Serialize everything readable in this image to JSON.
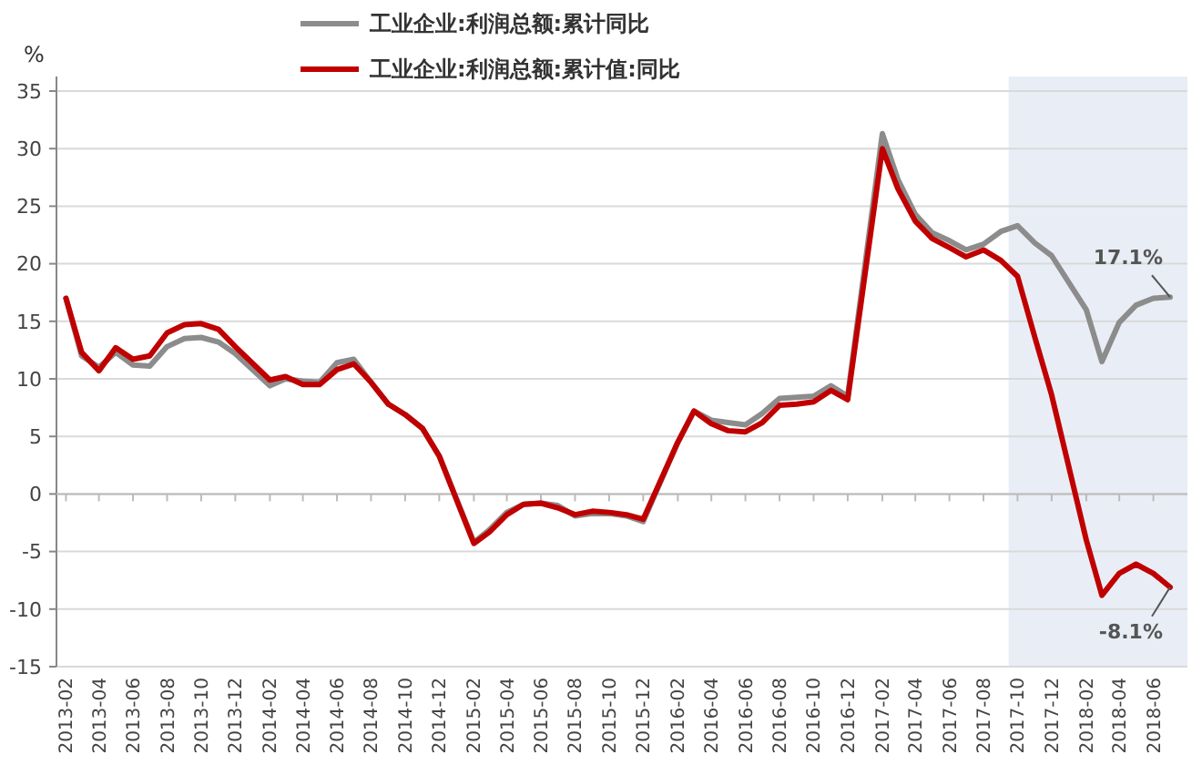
{
  "chart_data": {
    "type": "line",
    "ylabel": "%",
    "legend": "top",
    "grid": "y",
    "line_style": "solid",
    "marker": "none",
    "xlim": [
      "2013-01-15",
      "2018-08-01"
    ],
    "ylim": [
      -15,
      35
    ],
    "yticks": [
      -15,
      -10,
      -5,
      0,
      5,
      10,
      15,
      20,
      25,
      30,
      35
    ],
    "xticks": [
      "2013-02",
      "2013-04",
      "2013-06",
      "2013-08",
      "2013-10",
      "2013-12",
      "2014-02",
      "2014-04",
      "2014-06",
      "2014-08",
      "2014-10",
      "2014-12",
      "2015-02",
      "2015-04",
      "2015-06",
      "2015-08",
      "2015-10",
      "2015-12",
      "2016-02",
      "2016-04",
      "2016-06",
      "2016-08",
      "2016-10",
      "2016-12",
      "2017-02",
      "2017-04",
      "2017-06",
      "2017-08",
      "2017-10",
      "2017-12",
      "2018-02",
      "2018-04",
      "2018-06"
    ],
    "x": [
      "2013-02",
      "2013-03",
      "2013-04",
      "2013-05",
      "2013-06",
      "2013-07",
      "2013-08",
      "2013-09",
      "2013-10",
      "2013-11",
      "2013-12",
      "2014-02",
      "2014-03",
      "2014-04",
      "2014-05",
      "2014-06",
      "2014-07",
      "2014-08",
      "2014-09",
      "2014-10",
      "2014-11",
      "2014-12",
      "2015-02",
      "2015-03",
      "2015-04",
      "2015-05",
      "2015-06",
      "2015-07",
      "2015-08",
      "2015-09",
      "2015-10",
      "2015-11",
      "2015-12",
      "2016-02",
      "2016-03",
      "2016-04",
      "2016-05",
      "2016-06",
      "2016-07",
      "2016-08",
      "2016-09",
      "2016-10",
      "2016-11",
      "2016-12",
      "2017-02",
      "2017-03",
      "2017-04",
      "2017-05",
      "2017-06",
      "2017-07",
      "2017-08",
      "2017-09",
      "2017-10",
      "2017-11",
      "2017-12",
      "2018-02",
      "2018-03",
      "2018-04",
      "2018-05",
      "2018-06",
      "2018-07"
    ],
    "series": [
      {
        "name": "工业企业:利润总额:累计同比",
        "color": "#8c8c8c",
        "values": [
          17.0,
          12.0,
          11.0,
          12.3,
          11.2,
          11.1,
          12.8,
          13.5,
          13.6,
          13.2,
          12.2,
          9.4,
          10.0,
          9.8,
          9.7,
          11.4,
          11.7,
          9.7,
          7.8,
          6.9,
          5.7,
          3.3,
          -4.2,
          -3.1,
          -1.6,
          -0.9,
          -0.8,
          -1.0,
          -1.9,
          -1.7,
          -1.7,
          -1.9,
          -2.4,
          4.5,
          7.2,
          6.4,
          6.2,
          6.0,
          7.0,
          8.3,
          8.4,
          8.5,
          9.4,
          8.5,
          31.3,
          27.3,
          24.3,
          22.7,
          22.0,
          21.2,
          21.7,
          22.8,
          23.3,
          21.8,
          20.7,
          16.0,
          11.5,
          14.9,
          16.4,
          17.0,
          17.1
        ]
      },
      {
        "name": "工业企业:利润总额:累计值:同比",
        "color": "#c00000",
        "values": [
          17.0,
          12.3,
          10.7,
          12.7,
          11.7,
          12.0,
          14.0,
          14.7,
          14.8,
          14.3,
          12.8,
          9.9,
          10.2,
          9.5,
          9.5,
          10.8,
          11.3,
          9.7,
          7.8,
          6.9,
          5.7,
          3.3,
          -4.3,
          -3.3,
          -1.8,
          -0.9,
          -0.8,
          -1.2,
          -1.8,
          -1.5,
          -1.6,
          -1.8,
          -2.2,
          4.5,
          7.2,
          6.1,
          5.5,
          5.4,
          6.2,
          7.7,
          7.8,
          8.0,
          9.0,
          8.2,
          30.0,
          26.5,
          23.7,
          22.2,
          21.4,
          20.6,
          21.2,
          20.3,
          18.9,
          13.6,
          8.6,
          -4.0,
          -8.8,
          -6.9,
          -6.1,
          -6.9,
          -8.1
        ]
      }
    ],
    "bands": [
      {
        "axis": "x",
        "from": "2017-09-15",
        "to": "2018-08-01",
        "color": "#e9eef6"
      }
    ],
    "annotations": [
      {
        "text": "17.1%",
        "x": "2018-07",
        "y": 17.1
      },
      {
        "text": "-8.1%",
        "x": "2018-07",
        "y": -8.1
      }
    ]
  }
}
